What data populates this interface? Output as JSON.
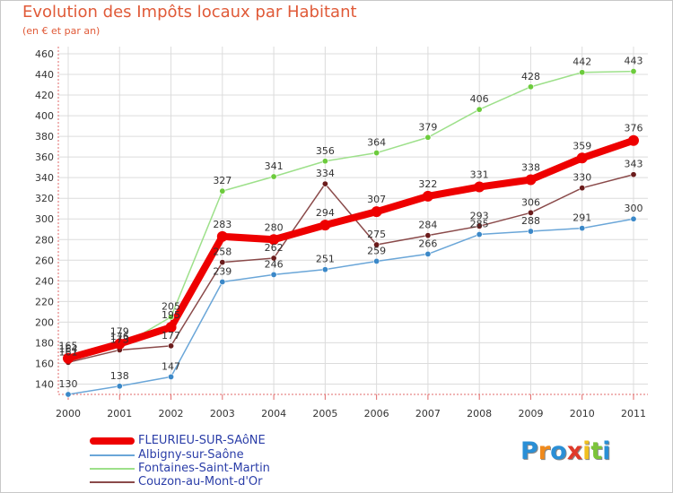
{
  "title": "Evolution des Impôts locaux par Habitant",
  "subtitle": "(en € et par an)",
  "logo": {
    "text": "Proxiti",
    "letters": [
      {
        "ch": "P",
        "color": "#2a8fd6"
      },
      {
        "ch": "r",
        "color": "#f08a1c"
      },
      {
        "ch": "o",
        "color": "#2a8fd6"
      },
      {
        "ch": "x",
        "color": "#e03a2a"
      },
      {
        "ch": "i",
        "color": "#f0c020"
      },
      {
        "ch": "t",
        "color": "#7cc43a"
      },
      {
        "ch": "i",
        "color": "#2a8fd6"
      }
    ]
  },
  "colors": {
    "grid": "#dcdcdc",
    "axis": "#e06a6a",
    "tick_text": "#333333",
    "title": "#e05a38"
  },
  "chart_data": {
    "type": "line",
    "title": "Evolution des Impôts locaux par Habitant",
    "subtitle": "(en € et par an)",
    "xlabel": "",
    "ylabel": "",
    "x": [
      "2000",
      "2001",
      "2002",
      "2003",
      "2004",
      "2005",
      "2006",
      "2007",
      "2008",
      "2009",
      "2010",
      "2011"
    ],
    "yticks": [
      140,
      160,
      180,
      200,
      220,
      240,
      260,
      280,
      300,
      320,
      340,
      360,
      380,
      400,
      420,
      440,
      460
    ],
    "ylim": [
      130,
      460
    ],
    "grid": true,
    "legend_position": "bottom-left",
    "series": [
      {
        "name": "Albigny-sur-Saône",
        "color": "#6aa6d8",
        "marker_color": "#3b88c8",
        "width": 1.5,
        "marker": 3.2,
        "values": [
          130,
          138,
          147,
          239,
          246,
          251,
          259,
          266,
          285,
          288,
          291,
          300
        ],
        "labels": [
          "130",
          "138",
          "147",
          "239",
          "246",
          "251",
          "259",
          "266",
          "285",
          "288",
          "291",
          "300"
        ]
      },
      {
        "name": "Fontaines-Saint-Martin",
        "color": "#9de08a",
        "marker_color": "#6ccb3c",
        "width": 1.5,
        "marker": 3.2,
        "values": [
          164,
          176,
          205,
          327,
          341,
          356,
          364,
          379,
          406,
          428,
          442,
          443
        ],
        "labels": [
          "164",
          "176",
          "205",
          "327",
          "341",
          "356",
          "364",
          "379",
          "406",
          "428",
          "442",
          "443"
        ]
      },
      {
        "name": "Couzon-au-Mont-d'Or",
        "color": "#8a4a4a",
        "marker_color": "#6b1c1c",
        "width": 1.5,
        "marker": 3.2,
        "values": [
          161,
          173,
          177,
          258,
          262,
          334,
          275,
          284,
          293,
          306,
          330,
          343
        ],
        "labels": [
          "161",
          "173",
          "177",
          "258",
          "262",
          "334",
          "275",
          "284",
          "293",
          "306",
          "330",
          "343"
        ]
      },
      {
        "name": "FLEURIEU-SUR-SAôNE",
        "color": "#ee0000",
        "marker_color": "#ee0000",
        "width": 8,
        "marker": 6,
        "values": [
          165,
          179,
          195,
          283,
          280,
          294,
          307,
          322,
          331,
          338,
          359,
          376
        ],
        "labels": [
          "165",
          "179",
          "195",
          "283",
          "280",
          "294",
          "307",
          "322",
          "331",
          "338",
          "359",
          "376"
        ]
      }
    ]
  },
  "legend": [
    {
      "label": "FLEURIEU-SUR-SAôNE",
      "color": "#ee0000",
      "thickness": 8
    },
    {
      "label": "Albigny-sur-Saône",
      "color": "#6aa6d8",
      "thickness": 2
    },
    {
      "label": "Fontaines-Saint-Martin",
      "color": "#9de08a",
      "thickness": 2
    },
    {
      "label": "Couzon-au-Mont-d'Or",
      "color": "#8a4a4a",
      "thickness": 2
    }
  ]
}
